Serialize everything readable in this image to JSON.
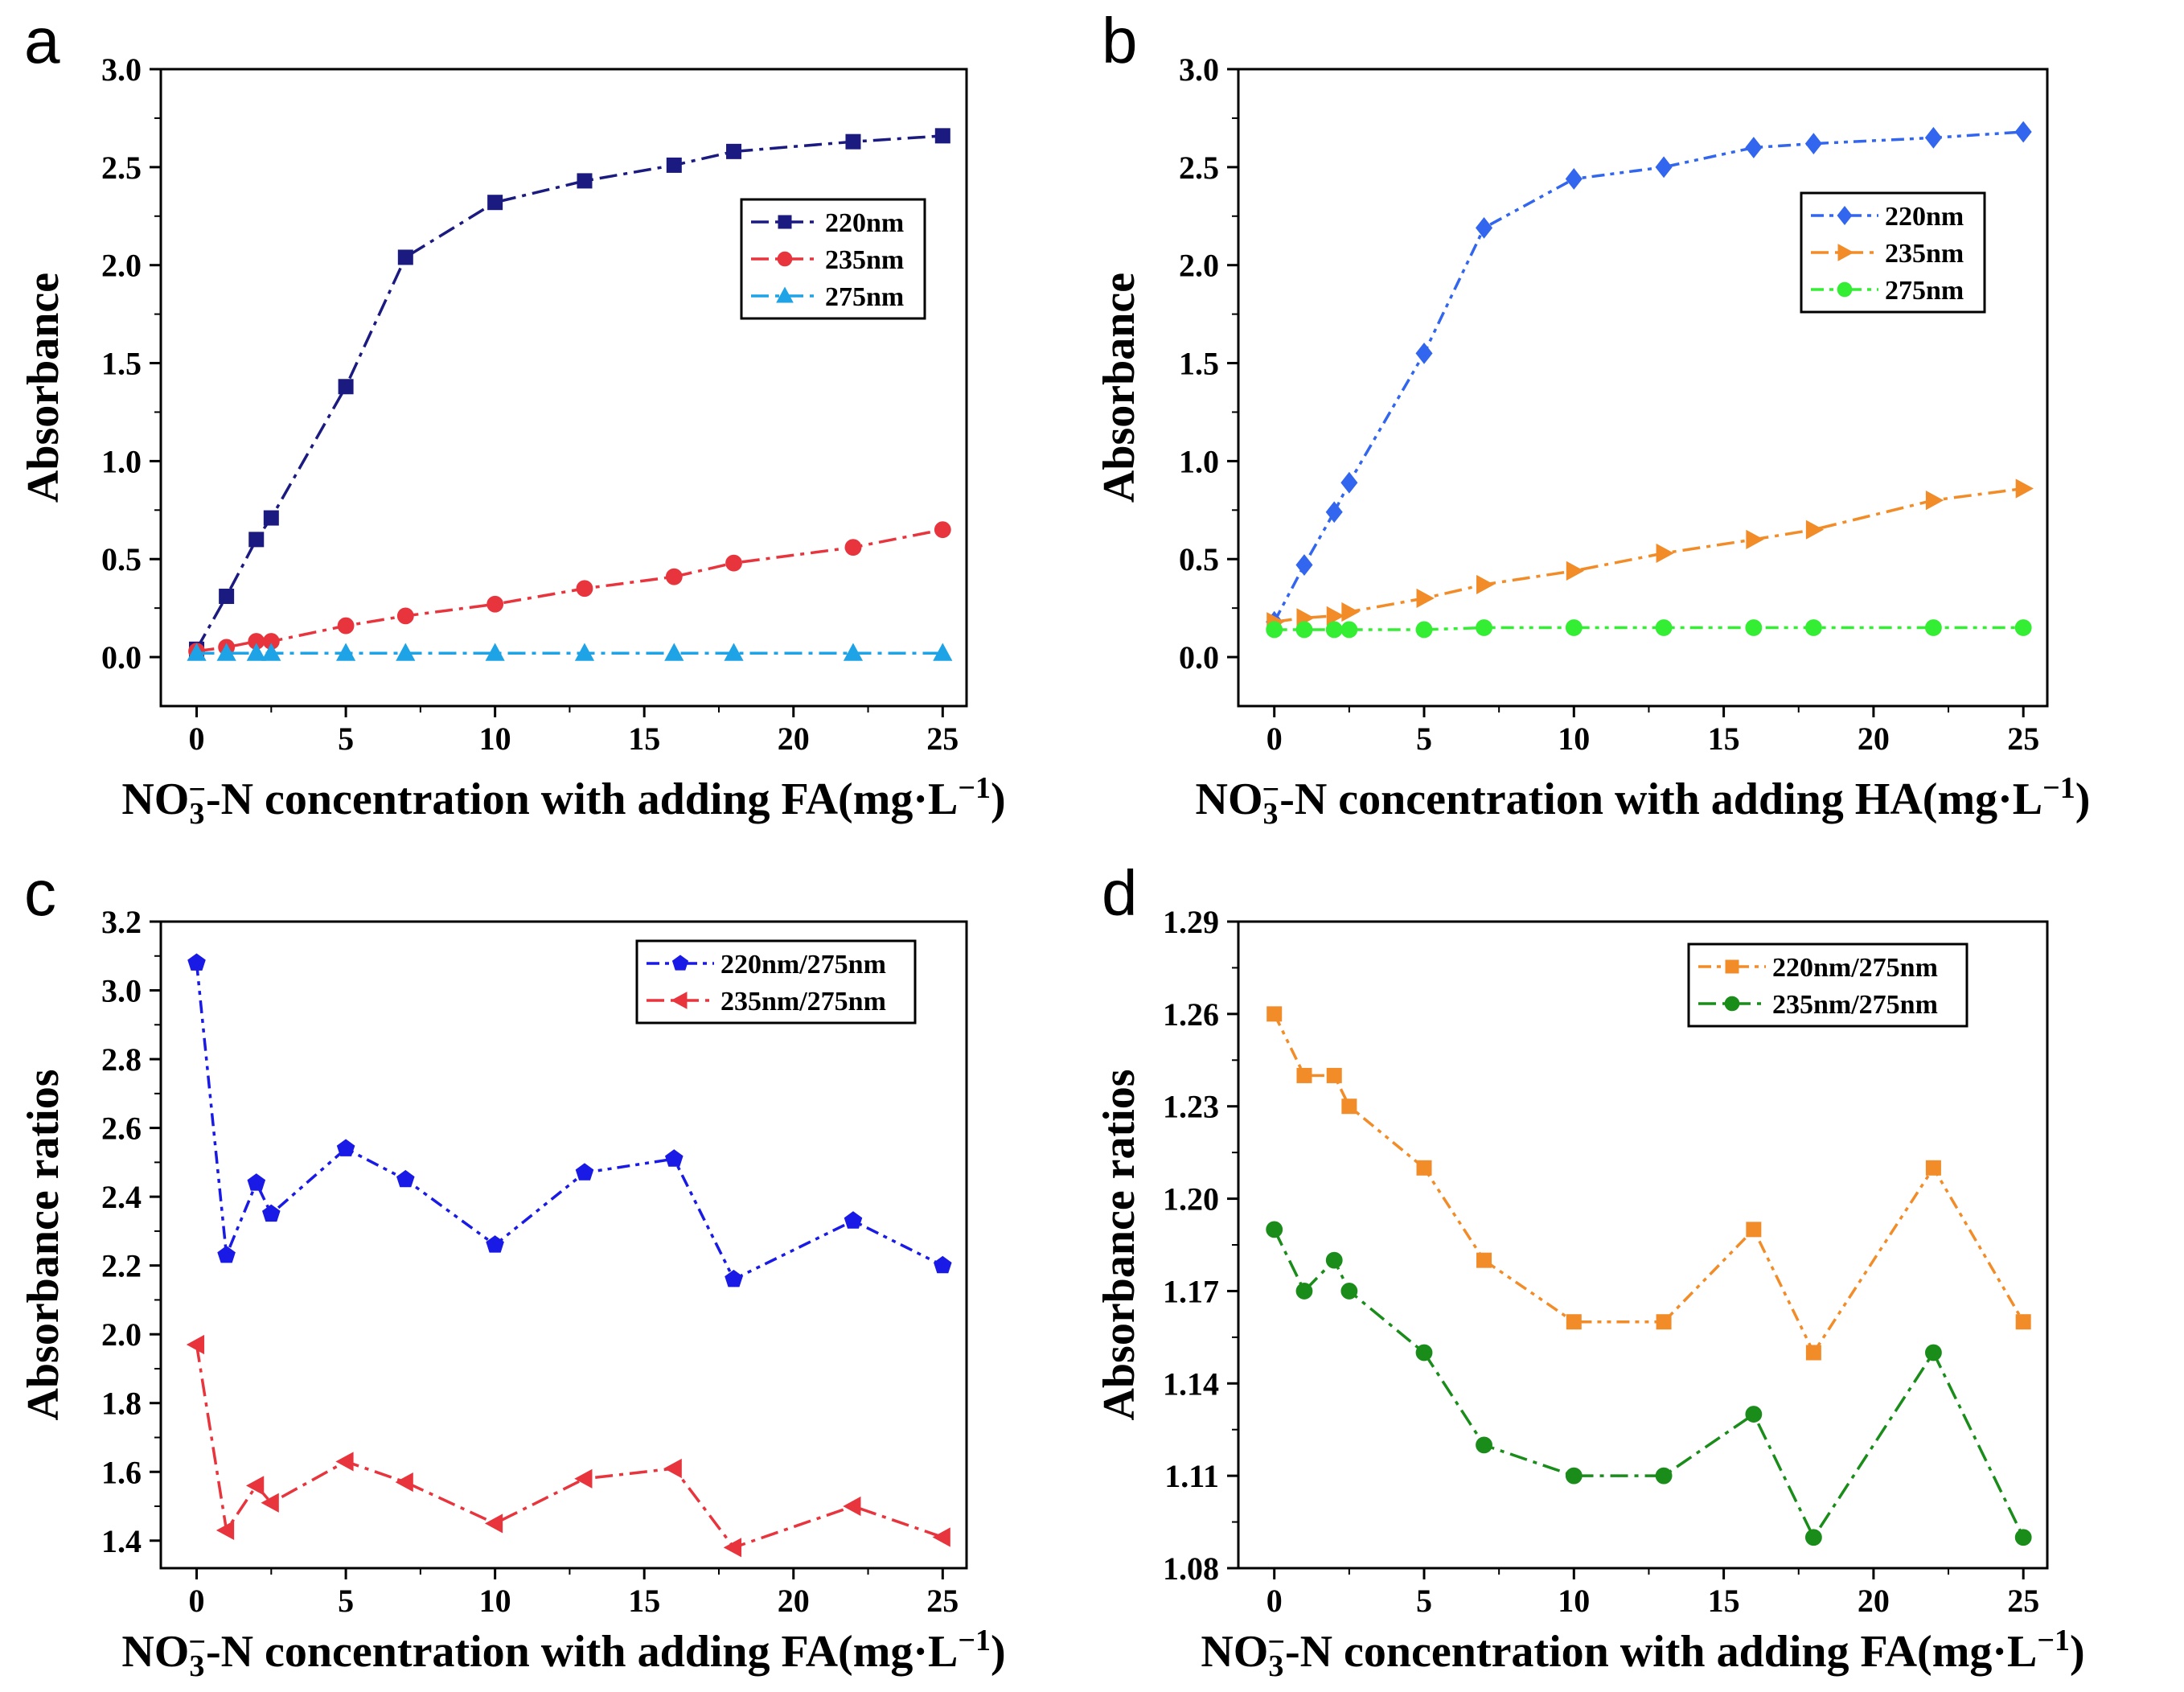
{
  "figure": {
    "panels": [
      {
        "letter": "a",
        "x_title_parts": {
          "pre": "NO",
          "sub": "3",
          "sup": "−",
          "post": "-N concentration with adding FA(mg·L",
          "exp": "−1",
          "close": ")"
        },
        "y_title": "Absorbance"
      },
      {
        "letter": "b",
        "x_title_parts": {
          "pre": "NO",
          "sub": "3",
          "sup": "−",
          "post": "-N concentration with adding HA(mg·L",
          "exp": "−1",
          "close": ")"
        },
        "y_title": "Absorbance"
      },
      {
        "letter": "c",
        "x_title_parts": {
          "pre": "NO",
          "sub": "3",
          "sup": "−",
          "post": "-N concentration with adding FA(mg·L",
          "exp": "−1",
          "close": ")"
        },
        "y_title": "Absorbance ratios"
      },
      {
        "letter": "d",
        "x_title_parts": {
          "pre": "NO",
          "sub": "3",
          "sup": "−",
          "post": "-N concentration with adding FA(mg·L",
          "exp": "−1",
          "close": ")"
        },
        "y_title": "Absorbance ratios"
      }
    ]
  },
  "chart_data": [
    {
      "type": "line",
      "panel": "a",
      "title": "",
      "xlabel": "NO3−-N concentration with adding FA(mg·L−1)",
      "ylabel": "Absorbance",
      "xlim": [
        -1.2,
        25.8
      ],
      "ylim": [
        -0.25,
        3.0
      ],
      "xticks": [
        0,
        5,
        10,
        15,
        20,
        25
      ],
      "xtick_labels": [
        "0",
        "5",
        "10",
        "15",
        "20",
        "25"
      ],
      "yticks": [
        0,
        0.5,
        1.0,
        1.5,
        2.0,
        2.5,
        3.0
      ],
      "ytick_labels": [
        "0.0",
        "0.5",
        "1.0",
        "1.5",
        "2.0",
        "2.5",
        "3.0"
      ],
      "legend_position": "upper-right",
      "x": [
        0,
        1,
        2,
        2.5,
        5,
        7,
        10,
        13,
        16,
        18,
        22,
        25
      ],
      "series": [
        {
          "name": "220nm",
          "color": "#1a1a80",
          "marker": "square",
          "dash": "dashdot",
          "values": [
            0.04,
            0.31,
            0.6,
            0.71,
            1.38,
            2.04,
            2.32,
            2.43,
            2.51,
            2.58,
            2.63,
            2.66
          ]
        },
        {
          "name": "235nm",
          "color": "#e8343c",
          "marker": "circle",
          "dash": "dashdot",
          "values": [
            0.03,
            0.05,
            0.08,
            0.08,
            0.16,
            0.21,
            0.27,
            0.35,
            0.41,
            0.48,
            0.56,
            0.65
          ]
        },
        {
          "name": "275nm",
          "color": "#1ea3e6",
          "marker": "triangle-up",
          "dash": "dashdot",
          "values": [
            0.02,
            0.02,
            0.02,
            0.02,
            0.02,
            0.02,
            0.02,
            0.02,
            0.02,
            0.02,
            0.02,
            0.02
          ]
        }
      ]
    },
    {
      "type": "line",
      "panel": "b",
      "title": "",
      "xlabel": "NO3−-N concentration with adding HA(mg·L−1)",
      "ylabel": "Absorbance",
      "xlim": [
        -1.2,
        25.8
      ],
      "ylim": [
        -0.25,
        3.0
      ],
      "xticks": [
        0,
        5,
        10,
        15,
        20,
        25
      ],
      "xtick_labels": [
        "0",
        "5",
        "10",
        "15",
        "20",
        "25"
      ],
      "yticks": [
        0,
        0.5,
        1.0,
        1.5,
        2.0,
        2.5,
        3.0
      ],
      "ytick_labels": [
        "0.0",
        "0.5",
        "1.0",
        "1.5",
        "2.0",
        "2.5",
        "3.0"
      ],
      "legend_position": "upper-right",
      "x": [
        0,
        1,
        2,
        2.5,
        5,
        7,
        10,
        13,
        16,
        18,
        22,
        25
      ],
      "series": [
        {
          "name": "220nm",
          "color": "#3366ee",
          "marker": "diamond",
          "dash": "dashdotdot",
          "values": [
            0.18,
            0.47,
            0.74,
            0.89,
            1.55,
            2.19,
            2.44,
            2.5,
            2.6,
            2.62,
            2.65,
            2.68
          ]
        },
        {
          "name": "235nm",
          "color": "#f28c28",
          "marker": "triangle-right",
          "dash": "dashdot",
          "values": [
            0.18,
            0.2,
            0.21,
            0.23,
            0.3,
            0.37,
            0.44,
            0.53,
            0.6,
            0.65,
            0.8,
            0.86
          ]
        },
        {
          "name": "275nm",
          "color": "#33ee33",
          "marker": "circle",
          "dash": "dashdotdot",
          "values": [
            0.14,
            0.14,
            0.14,
            0.14,
            0.14,
            0.15,
            0.15,
            0.15,
            0.15,
            0.15,
            0.15,
            0.15
          ]
        }
      ]
    },
    {
      "type": "line",
      "panel": "c",
      "title": "",
      "xlabel": "NO3−-N concentration with adding FA(mg·L−1)",
      "ylabel": "Absorbance ratios",
      "xlim": [
        -1.2,
        25.8
      ],
      "ylim": [
        1.32,
        3.2
      ],
      "xticks": [
        0,
        5,
        10,
        15,
        20,
        25
      ],
      "xtick_labels": [
        "0",
        "5",
        "10",
        "15",
        "20",
        "25"
      ],
      "yticks": [
        1.4,
        1.6,
        1.8,
        2.0,
        2.2,
        2.4,
        2.6,
        2.8,
        3.0,
        3.2
      ],
      "ytick_labels": [
        "1.4",
        "1.6",
        "1.8",
        "2.0",
        "2.2",
        "2.4",
        "2.6",
        "2.8",
        "3.0",
        "3.2"
      ],
      "legend_position": "upper-right",
      "x": [
        0,
        1,
        2,
        2.5,
        5,
        7,
        10,
        13,
        16,
        18,
        22,
        25
      ],
      "series": [
        {
          "name": "220nm/275nm",
          "color": "#1a1ae6",
          "marker": "pentagon",
          "dash": "dashdotdot",
          "values": [
            3.08,
            2.23,
            2.44,
            2.35,
            2.54,
            2.45,
            2.26,
            2.47,
            2.51,
            2.16,
            2.33,
            2.2
          ]
        },
        {
          "name": "235nm/275nm",
          "color": "#e8343c",
          "marker": "triangle-left",
          "dash": "dashdot",
          "values": [
            1.97,
            1.43,
            1.56,
            1.51,
            1.63,
            1.57,
            1.45,
            1.58,
            1.61,
            1.38,
            1.5,
            1.41
          ]
        }
      ]
    },
    {
      "type": "line",
      "panel": "d",
      "title": "",
      "xlabel": "NO3−-N concentration with adding FA(mg·L−1)",
      "ylabel": "Absorbance ratios",
      "xlim": [
        -1.2,
        25.8
      ],
      "ylim": [
        1.08,
        1.29
      ],
      "xticks": [
        0,
        5,
        10,
        15,
        20,
        25
      ],
      "xtick_labels": [
        "0",
        "5",
        "10",
        "15",
        "20",
        "25"
      ],
      "yticks": [
        1.08,
        1.11,
        1.14,
        1.17,
        1.2,
        1.23,
        1.26,
        1.29
      ],
      "ytick_labels": [
        "1.08",
        "1.11",
        "1.14",
        "1.17",
        "1.20",
        "1.23",
        "1.26",
        "1.29"
      ],
      "legend_position": "upper-right",
      "x": [
        0,
        1,
        2,
        2.5,
        5,
        7,
        10,
        13,
        16,
        18,
        22,
        25
      ],
      "series": [
        {
          "name": "220nm/275nm",
          "color": "#f28c28",
          "marker": "square",
          "dash": "dashdotdot",
          "values": [
            1.26,
            1.24,
            1.24,
            1.23,
            1.21,
            1.18,
            1.16,
            1.16,
            1.19,
            1.15,
            1.21,
            1.16
          ]
        },
        {
          "name": "235nm/275nm",
          "color": "#1a8c1a",
          "marker": "circle",
          "dash": "dashdot",
          "values": [
            1.19,
            1.17,
            1.18,
            1.17,
            1.15,
            1.12,
            1.11,
            1.11,
            1.13,
            1.09,
            1.15,
            1.09
          ]
        }
      ]
    }
  ]
}
